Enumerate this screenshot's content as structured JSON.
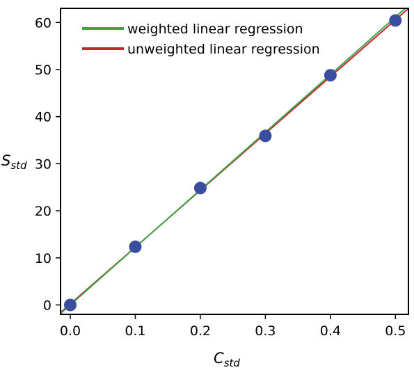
{
  "chart_data": {
    "type": "scatter",
    "title": "",
    "xlabel": {
      "main": "C",
      "sub": "std"
    },
    "ylabel": {
      "main": "S",
      "sub": "std"
    },
    "xlim": [
      -0.015,
      0.52
    ],
    "ylim": [
      -2,
      63
    ],
    "xticks": [
      "0.0",
      "0.1",
      "0.2",
      "0.3",
      "0.4",
      "0.5"
    ],
    "yticks": [
      "0",
      "10",
      "20",
      "30",
      "40",
      "50",
      "60"
    ],
    "grid": false,
    "legend_position": "top-left",
    "points": {
      "color": "#3a4ea0",
      "x": [
        0.0,
        0.1,
        0.2,
        0.3,
        0.4,
        0.5
      ],
      "y": [
        0.0,
        12.36,
        24.83,
        35.91,
        48.79,
        60.42
      ]
    },
    "series": [
      {
        "name": "weighted linear regression",
        "type": "line",
        "slope": 122.3,
        "intercept": 0.0,
        "color": "#3fa648"
      },
      {
        "name": "unweighted linear regression",
        "type": "line",
        "slope": 120.7,
        "intercept": 0.209,
        "color": "#c4262e"
      }
    ]
  }
}
